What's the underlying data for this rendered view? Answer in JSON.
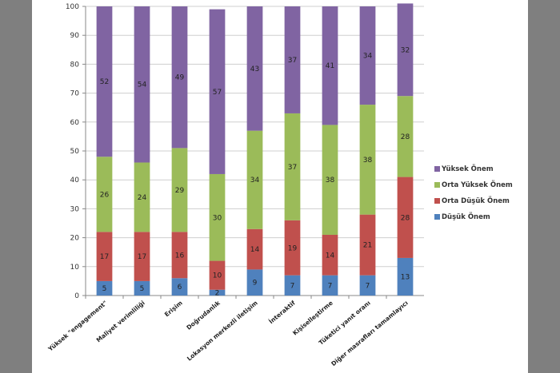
{
  "chart_data": {
    "type": "bar",
    "stacked": true,
    "title": "",
    "xlabel": "",
    "ylabel": "",
    "ylim": [
      0,
      100
    ],
    "yticks": [
      0,
      10,
      20,
      30,
      40,
      50,
      60,
      70,
      80,
      90,
      100
    ],
    "grid": true,
    "legend_position": "right",
    "categories": [
      "Yüksek \"engagement\"",
      "Maliyet verimliliği",
      "Erişim",
      "Doğrudanlık",
      "Lokasyon merkezli iletişim",
      "İnteraktif",
      "Kişiselleştirme",
      "Tüketici yanıt oranı",
      "Diğer masrafları tamamlayıcı"
    ],
    "series": [
      {
        "name": "Düşük Önem",
        "color": "#4f81bd",
        "values": [
          5,
          5,
          6,
          2,
          9,
          7,
          7,
          7,
          13
        ]
      },
      {
        "name": "Orta Düşük Önem",
        "color": "#c0504d",
        "values": [
          17,
          17,
          16,
          10,
          14,
          19,
          14,
          21,
          28
        ]
      },
      {
        "name": "Orta Yüksek Önem",
        "color": "#9bbb59",
        "values": [
          26,
          24,
          29,
          30,
          34,
          37,
          38,
          38,
          28
        ]
      },
      {
        "name": "Yüksek Önem",
        "color": "#8064a2",
        "values": [
          52,
          54,
          49,
          57,
          43,
          37,
          41,
          34,
          32
        ]
      }
    ],
    "legend_order": [
      "Yüksek Önem",
      "Orta Yüksek Önem",
      "Orta Düşük Önem",
      "Düşük Önem"
    ]
  }
}
